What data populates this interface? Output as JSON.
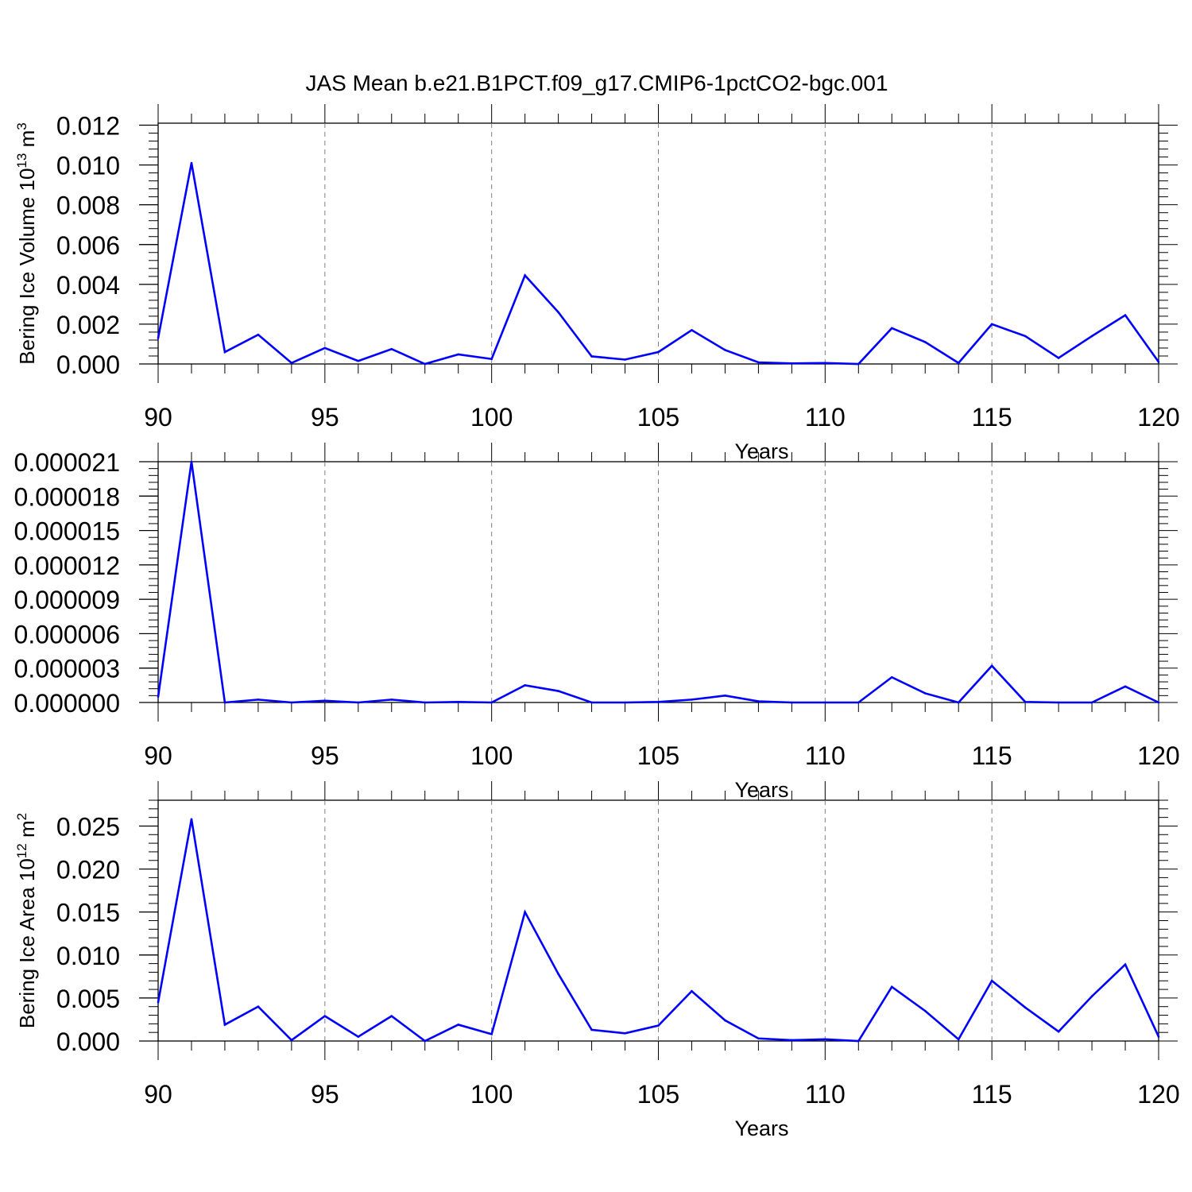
{
  "figure": {
    "title": "JAS Mean b.e21.B1PCT.f09_g17.CMIP6-1pctCO2-bgc.001"
  },
  "colors": {
    "line": "#0000ff",
    "axis": "#000000",
    "grid": "#808080",
    "background": "#ffffff"
  },
  "chart_data": [
    {
      "type": "line",
      "title": "",
      "xlabel": "Years",
      "ylabel": "Bering Ice Volume 10",
      "ylabel_exponent": "13",
      "ylabel_unit": "m",
      "ylabel_unit_exponent": "3",
      "xlim": [
        90,
        120
      ],
      "ylim": [
        0.0,
        0.0121
      ],
      "x_ticks": [
        "90",
        "95",
        "100",
        "105",
        "110",
        "115",
        "120"
      ],
      "y_ticks": [
        "0.000",
        "0.002",
        "0.004",
        "0.006",
        "0.008",
        "0.010",
        "0.012"
      ],
      "grid": "vertical dashed at major x ticks",
      "x": [
        90,
        91,
        92,
        93,
        94,
        95,
        96,
        97,
        98,
        99,
        100,
        101,
        102,
        103,
        104,
        105,
        106,
        107,
        108,
        109,
        110,
        111,
        112,
        113,
        114,
        115,
        116,
        117,
        118,
        119,
        120
      ],
      "series": [
        {
          "values": [
            0.0013,
            0.0101,
            0.0006,
            0.00147,
            5e-05,
            0.0008,
            0.00015,
            0.00075,
            0.0,
            0.00048,
            0.00025,
            0.00445,
            0.0026,
            0.00038,
            0.00022,
            0.0006,
            0.0017,
            0.0007,
            8e-05,
            3e-05,
            5e-05,
            0.0,
            0.0018,
            0.0011,
            5e-05,
            0.002,
            0.0014,
            0.0003,
            0.0014,
            0.00245,
            0.0001
          ]
        }
      ]
    },
    {
      "type": "line",
      "title": "",
      "xlabel": "Years",
      "ylabel": "",
      "xlim": [
        90,
        120
      ],
      "ylim": [
        0.0,
        2.1e-05
      ],
      "x_ticks": [
        "90",
        "95",
        "100",
        "105",
        "110",
        "115",
        "120"
      ],
      "y_ticks": [
        "0.000000",
        "0.000003",
        "0.000006",
        "0.000009",
        "0.000012",
        "0.000015",
        "0.000018",
        "0.000021"
      ],
      "grid": "vertical dashed at major x ticks",
      "x": [
        90,
        91,
        92,
        93,
        94,
        95,
        96,
        97,
        98,
        99,
        100,
        101,
        102,
        103,
        104,
        105,
        106,
        107,
        108,
        109,
        110,
        111,
        112,
        113,
        114,
        115,
        116,
        117,
        118,
        119,
        120
      ],
      "series": [
        {
          "values": [
            5e-07,
            2.1e-05,
            0.0,
            2.5e-07,
            0.0,
            1.5e-07,
            0.0,
            2.5e-07,
            0.0,
            5e-08,
            0.0,
            1.5e-06,
            1e-06,
            0.0,
            0.0,
            5e-08,
            2.5e-07,
            6e-07,
            1e-07,
            0.0,
            0.0,
            0.0,
            2.2e-06,
            8e-07,
            0.0,
            3.2e-06,
            5e-08,
            0.0,
            0.0,
            1.4e-06,
            0.0
          ]
        }
      ]
    },
    {
      "type": "line",
      "title": "",
      "xlabel": "Years",
      "ylabel": "Bering Ice Area 10",
      "ylabel_exponent": "12",
      "ylabel_unit": "m",
      "ylabel_unit_exponent": "2",
      "xlim": [
        90,
        120
      ],
      "ylim": [
        0.0,
        0.028
      ],
      "x_ticks": [
        "90",
        "95",
        "100",
        "105",
        "110",
        "115",
        "120"
      ],
      "y_ticks": [
        "0.000",
        "0.005",
        "0.010",
        "0.015",
        "0.020",
        "0.025"
      ],
      "grid": "vertical dashed at major x ticks",
      "x": [
        90,
        91,
        92,
        93,
        94,
        95,
        96,
        97,
        98,
        99,
        100,
        101,
        102,
        103,
        104,
        105,
        106,
        107,
        108,
        109,
        110,
        111,
        112,
        113,
        114,
        115,
        116,
        117,
        118,
        119,
        120
      ],
      "series": [
        {
          "values": [
            0.0045,
            0.0258,
            0.0019,
            0.004,
            0.0001,
            0.0029,
            0.0005,
            0.0029,
            0.0,
            0.0019,
            0.0008,
            0.015,
            0.0078,
            0.0013,
            0.0009,
            0.0018,
            0.0058,
            0.0024,
            0.0003,
            0.0001,
            0.0002,
            0.0,
            0.0063,
            0.0035,
            0.0002,
            0.007,
            0.0039,
            0.0011,
            0.0052,
            0.0089,
            0.0005
          ]
        }
      ]
    }
  ]
}
